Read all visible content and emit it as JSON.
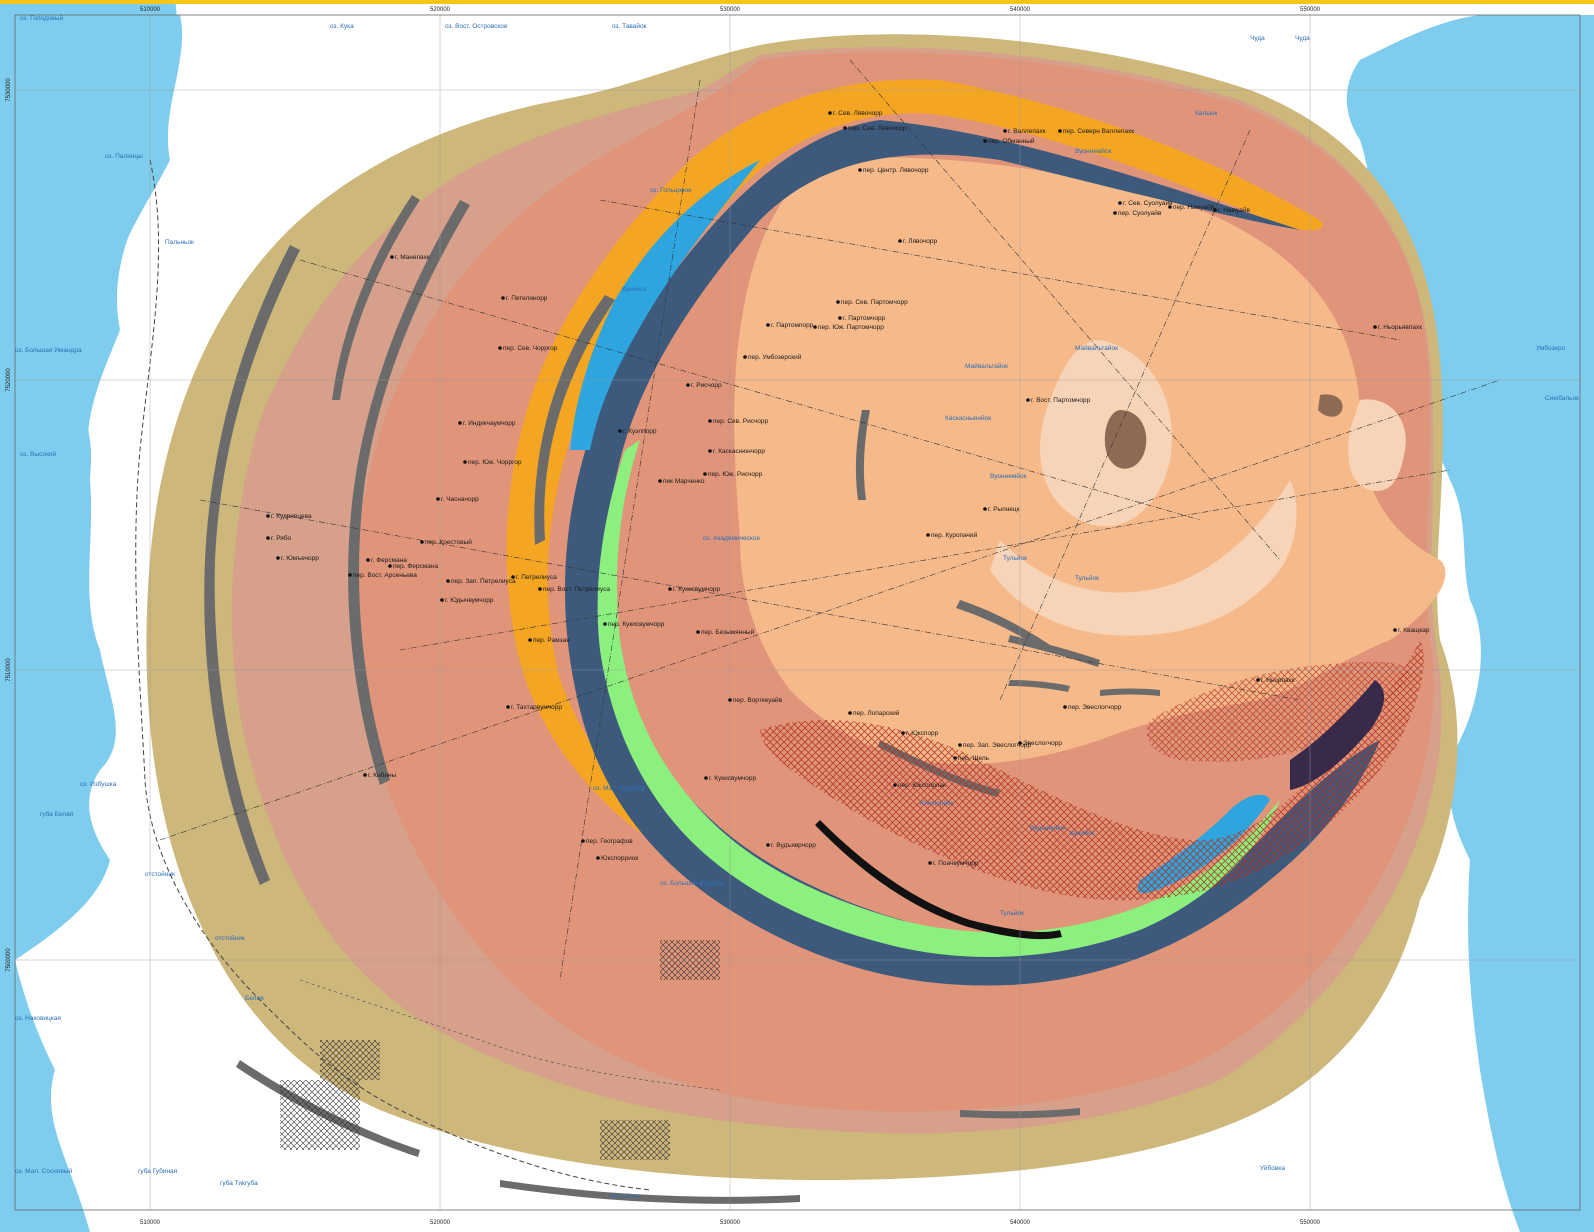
{
  "colors": {
    "water": "#7fcdee",
    "land": "#ffffff",
    "outer_ring": "#cdb77a",
    "pink_brown": "#d6a08b",
    "salmon": "#e0957a",
    "core": "#f5b98a",
    "pale_core": "#f7d4b8",
    "orange": "#f4a623",
    "dark_blue": "#3d5a7d",
    "blue": "#2ea5de",
    "green": "#8cf07e",
    "dark_band": "#6b6b6b",
    "brown_blob": "#8e6a55",
    "border_yellow": "#f5c518"
  },
  "frame": {
    "top_ticks": [
      "510000",
      "520000",
      "530000",
      "540000",
      "550000"
    ],
    "bottom_ticks": [
      "510000",
      "520000",
      "530000",
      "540000",
      "550000"
    ],
    "left_ticks": [
      "7530000",
      "7520000",
      "7510000",
      "7500000"
    ]
  },
  "peaks": [
    "г. Сев. Лявочорр",
    "пер. Сев. Лявочорр",
    "пер. Обманный",
    "г. Валлепахк",
    "пер. Северн Валлепахк",
    "пер. Центр. Лявочорр",
    "г. Сев. Суолуайв",
    "пер. Намуайв",
    "г. Намуайв",
    "пер. Суолуайв",
    "г. Лявочорр",
    "г. Манепахк",
    "г. Петелинорр",
    "пер. Сев. Партомчорр",
    "г. Партомчорр",
    "г. Партомпорр",
    "пер. Юж. Партомчорр",
    "г. Ньорьявпахк",
    "пер. Сев. Чорргор",
    "пер. Умбозерский",
    "г. Рисчорр",
    "г. Вост. Партомчорр",
    "г. Индикчаумчорр",
    "пер. Сев. Рисчорр",
    "г. Куэлпорр",
    "г. Каскаснюнчорр",
    "пер. Юж. Чорргор",
    "пер. Юж. Рисчорр",
    "пик Марченко",
    "г. Часначорр",
    "г. Рыпнецк",
    "г. Кудрявцева",
    "г. Рябо",
    "пер. Крестовый",
    "пер. Куропачий",
    "г. Юмъечорр",
    "г. Ферсмана",
    "пер. Ферсмана",
    "пер. Вост. Арсеньева",
    "пер. Зап. Петрелиуса",
    "г. Петрелиуса",
    "пер. Вост. Петрелиуса",
    "г. Кукисвумчорр",
    "г. Юдычвумчорр",
    "пер. Кукисвумчорр",
    "пер. Рамзая",
    "пер. Безымянный",
    "г. Кващкар",
    "г. Ньорпахк",
    "пер. Ворткеуайв",
    "г. Тахтарвумчорр",
    "пер. Лопарский",
    "пер. Эвеслогчорр",
    "г. Юкспорр",
    "пер. Зап. Эвеслогчорр",
    "Эвеслогчорр",
    "пер. Щель",
    "г. Кибины",
    "г. Кукисвумчорр",
    "пер. Юкспорлак",
    "пер. Географов",
    "Юкспорриок",
    "г. Вудъяврчорр",
    "г. Поачвумчорр"
  ],
  "water_labels": [
    "оз. Голодовый",
    "оз. Кука",
    "оз. Вост. Островское",
    "оз. Тавайок",
    "оз. Гольцовое",
    "оз. Палинцы",
    "Пальньок",
    "оз. Большая Имандра",
    "Кунийок",
    "Майвальтайок",
    "Майвальтайок",
    "Вуоннемйок",
    "Калыок",
    "Чуда",
    "Чуда",
    "Вуоннемйок",
    "Тульйок",
    "Тульйок",
    "Каскасньюнйок",
    "оз. Высокий",
    "оз. Академическое",
    "оз. Мал. Вудъявр",
    "оз. Большой Вудъявр",
    "губа Белая",
    "оз. Избушка",
    "отстойник",
    "отстойник",
    "оз. Наковицкая",
    "Белая",
    "оз. Мал. Сосновый",
    "губа Тикгуба",
    "губа Губиная",
    "отстойник",
    "Умбозеро",
    "Сиюбальок",
    "Уйбовка",
    "Юкспорйок",
    "Вудъяврйок",
    "Кунийок",
    "Тульйок"
  ]
}
